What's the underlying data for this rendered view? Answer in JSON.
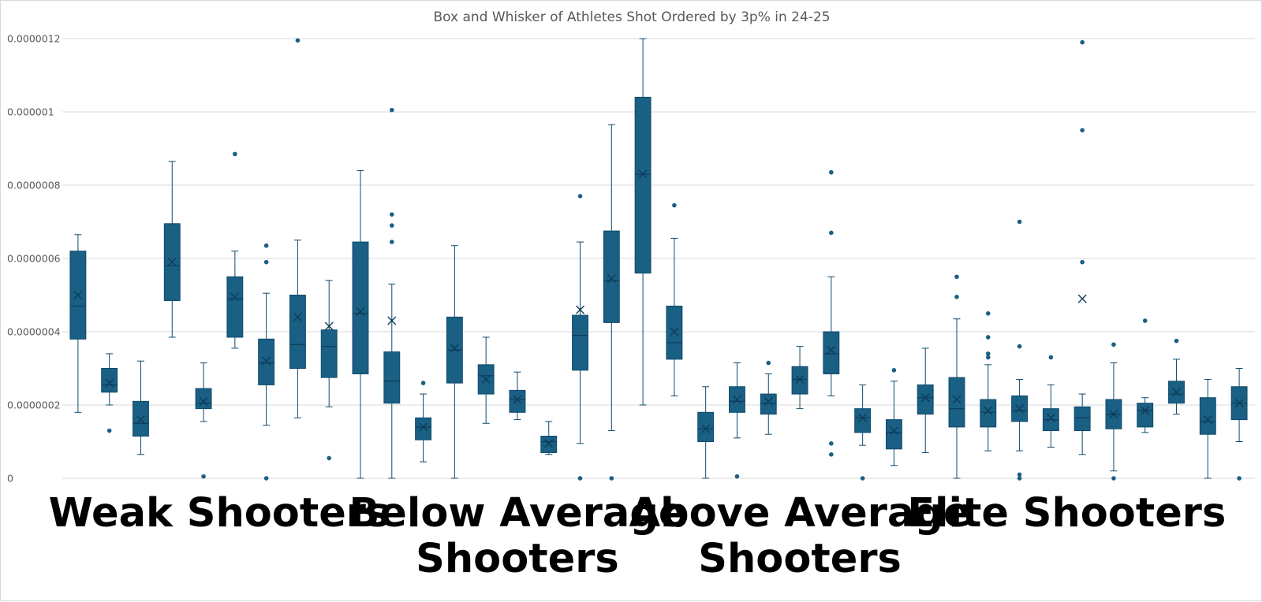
{
  "chart_data": {
    "type": "box",
    "title": "Box and Whisker of Athletes Shot Ordered by 3p% in 24-25",
    "xlabel": "",
    "ylabel": "",
    "ylim": [
      0,
      1.2e-06
    ],
    "yticks": [
      "0",
      "0.0000002",
      "0.0000004",
      "0.0000006",
      "0.0000008",
      "0.000001",
      "0.0000012"
    ],
    "grid": true,
    "colors": {
      "box": "#1a5f84",
      "box_stroke": "#0f4a6b",
      "median": "#0d3d59",
      "gridline": "#d9d9d9",
      "text": "#595959"
    },
    "groups": [
      {
        "label": [
          "Weak Shooters"
        ],
        "start": 0,
        "end": 9
      },
      {
        "label": [
          "Below Average",
          "Shooters"
        ],
        "start": 10,
        "end": 18
      },
      {
        "label": [
          "Above Average",
          "Shooters"
        ],
        "start": 19,
        "end": 27
      },
      {
        "label": [
          "Elite Shooters"
        ],
        "start": 28,
        "end": 35
      }
    ],
    "boxes": [
      {
        "min": 1.8e-07,
        "q1": 3.8e-07,
        "median": 4.7e-07,
        "q3": 6.2e-07,
        "max": 6.65e-07,
        "mean": 5e-07,
        "outliers": []
      },
      {
        "min": 2e-07,
        "q1": 2.35e-07,
        "median": 2.55e-07,
        "q3": 3e-07,
        "max": 3.4e-07,
        "mean": 2.6e-07,
        "outliers": [
          1.3e-07
        ]
      },
      {
        "min": 6.5e-08,
        "q1": 1.15e-07,
        "median": 1.5e-07,
        "q3": 2.1e-07,
        "max": 3.2e-07,
        "mean": 1.6e-07,
        "outliers": []
      },
      {
        "min": 3.85e-07,
        "q1": 4.85e-07,
        "median": 5.8e-07,
        "q3": 6.95e-07,
        "max": 8.65e-07,
        "mean": 5.9e-07,
        "outliers": []
      },
      {
        "min": 1.55e-07,
        "q1": 1.9e-07,
        "median": 2.05e-07,
        "q3": 2.45e-07,
        "max": 3.15e-07,
        "mean": 2.1e-07,
        "outliers": [
          5e-09
        ]
      },
      {
        "min": 3.55e-07,
        "q1": 3.85e-07,
        "median": 4.9e-07,
        "q3": 5.5e-07,
        "max": 6.2e-07,
        "mean": 4.95e-07,
        "outliers": [
          8.85e-07
        ]
      },
      {
        "min": 1.45e-07,
        "q1": 2.55e-07,
        "median": 3.15e-07,
        "q3": 3.8e-07,
        "max": 5.05e-07,
        "mean": 3.2e-07,
        "outliers": [
          0,
          5.9e-07,
          6.35e-07
        ]
      },
      {
        "min": 1.65e-07,
        "q1": 3e-07,
        "median": 3.65e-07,
        "q3": 5e-07,
        "max": 6.5e-07,
        "mean": 4.4e-07,
        "outliers": [
          1.195e-06
        ]
      },
      {
        "min": 1.95e-07,
        "q1": 2.75e-07,
        "median": 3.6e-07,
        "q3": 4.05e-07,
        "max": 5.4e-07,
        "mean": 4.15e-07,
        "outliers": [
          5.5e-08
        ]
      },
      {
        "min": 0,
        "q1": 2.85e-07,
        "median": 4.5e-07,
        "q3": 6.45e-07,
        "max": 8.4e-07,
        "mean": 4.55e-07,
        "outliers": []
      },
      {
        "min": 0,
        "q1": 2.05e-07,
        "median": 2.65e-07,
        "q3": 3.45e-07,
        "max": 5.3e-07,
        "mean": 4.3e-07,
        "outliers": [
          6.45e-07,
          6.9e-07,
          7.2e-07,
          1.005e-06
        ]
      },
      {
        "min": 4.5e-08,
        "q1": 1.05e-07,
        "median": 1.4e-07,
        "q3": 1.65e-07,
        "max": 2.3e-07,
        "mean": 1.4e-07,
        "outliers": [
          2.6e-07
        ]
      },
      {
        "min": 0,
        "q1": 2.6e-07,
        "median": 3.5e-07,
        "q3": 4.4e-07,
        "max": 6.35e-07,
        "mean": 3.55e-07,
        "outliers": []
      },
      {
        "min": 1.5e-07,
        "q1": 2.3e-07,
        "median": 2.8e-07,
        "q3": 3.1e-07,
        "max": 3.85e-07,
        "mean": 2.7e-07,
        "outliers": []
      },
      {
        "min": 1.6e-07,
        "q1": 1.8e-07,
        "median": 2.15e-07,
        "q3": 2.4e-07,
        "max": 2.9e-07,
        "mean": 2.15e-07,
        "outliers": []
      },
      {
        "min": 6.5e-08,
        "q1": 7e-08,
        "median": 1e-07,
        "q3": 1.15e-07,
        "max": 1.55e-07,
        "mean": 9.5e-08,
        "outliers": []
      },
      {
        "min": 9.5e-08,
        "q1": 2.95e-07,
        "median": 3.9e-07,
        "q3": 4.45e-07,
        "max": 6.45e-07,
        "mean": 4.6e-07,
        "outliers": [
          0,
          7.7e-07
        ]
      },
      {
        "min": 1.3e-07,
        "q1": 4.25e-07,
        "median": 5.4e-07,
        "q3": 6.75e-07,
        "max": 9.65e-07,
        "mean": 5.45e-07,
        "outliers": [
          0
        ]
      },
      {
        "min": 2e-07,
        "q1": 5.6e-07,
        "median": 8.3e-07,
        "q3": 1.04e-06,
        "max": 1.2e-06,
        "mean": 8.3e-07,
        "outliers": []
      },
      {
        "min": 2.25e-07,
        "q1": 3.25e-07,
        "median": 3.7e-07,
        "q3": 4.7e-07,
        "max": 6.55e-07,
        "mean": 4e-07,
        "outliers": [
          7.45e-07
        ]
      },
      {
        "min": 0,
        "q1": 1e-07,
        "median": 1.35e-07,
        "q3": 1.8e-07,
        "max": 2.5e-07,
        "mean": 1.35e-07,
        "outliers": []
      },
      {
        "min": 1.1e-07,
        "q1": 1.8e-07,
        "median": 2.1e-07,
        "q3": 2.5e-07,
        "max": 3.15e-07,
        "mean": 2.15e-07,
        "outliers": [
          5e-09
        ]
      },
      {
        "min": 1.2e-07,
        "q1": 1.75e-07,
        "median": 2.05e-07,
        "q3": 2.3e-07,
        "max": 2.85e-07,
        "mean": 2.1e-07,
        "outliers": [
          3.15e-07
        ]
      },
      {
        "min": 1.9e-07,
        "q1": 2.3e-07,
        "median": 2.7e-07,
        "q3": 3.05e-07,
        "max": 3.6e-07,
        "mean": 2.7e-07,
        "outliers": []
      },
      {
        "min": 2.25e-07,
        "q1": 2.85e-07,
        "median": 3.4e-07,
        "q3": 4e-07,
        "max": 5.5e-07,
        "mean": 3.5e-07,
        "outliers": [
          6.5e-08,
          9.5e-08,
          6.7e-07,
          8.35e-07
        ]
      },
      {
        "min": 9e-08,
        "q1": 1.25e-07,
        "median": 1.65e-07,
        "q3": 1.9e-07,
        "max": 2.55e-07,
        "mean": 1.65e-07,
        "outliers": [
          0
        ]
      },
      {
        "min": 3.5e-08,
        "q1": 8e-08,
        "median": 1.25e-07,
        "q3": 1.6e-07,
        "max": 2.65e-07,
        "mean": 1.3e-07,
        "outliers": [
          2.95e-07
        ]
      },
      {
        "min": 7e-08,
        "q1": 1.75e-07,
        "median": 2.2e-07,
        "q3": 2.55e-07,
        "max": 3.55e-07,
        "mean": 2.2e-07,
        "outliers": []
      },
      {
        "min": 0,
        "q1": 1.4e-07,
        "median": 1.9e-07,
        "q3": 2.75e-07,
        "max": 4.35e-07,
        "mean": 2.15e-07,
        "outliers": [
          4.95e-07,
          5.5e-07
        ]
      },
      {
        "min": 7.5e-08,
        "q1": 1.4e-07,
        "median": 1.8e-07,
        "q3": 2.15e-07,
        "max": 3.1e-07,
        "mean": 1.85e-07,
        "outliers": [
          3.3e-07,
          3.4e-07,
          3.85e-07,
          4.5e-07
        ]
      },
      {
        "min": 7.5e-08,
        "q1": 1.55e-07,
        "median": 1.85e-07,
        "q3": 2.25e-07,
        "max": 2.7e-07,
        "mean": 1.9e-07,
        "outliers": [
          0,
          1e-08,
          3.6e-07,
          7e-07
        ]
      },
      {
        "min": 8.5e-08,
        "q1": 1.3e-07,
        "median": 1.6e-07,
        "q3": 1.9e-07,
        "max": 2.55e-07,
        "mean": 1.65e-07,
        "outliers": [
          3.3e-07
        ]
      },
      {
        "min": 6.5e-08,
        "q1": 1.3e-07,
        "median": 1.65e-07,
        "q3": 1.95e-07,
        "max": 2.3e-07,
        "mean": 4.9e-07,
        "outliers": [
          5.9e-07,
          9.5e-07,
          1.19e-06
        ]
      },
      {
        "min": 2e-08,
        "q1": 1.35e-07,
        "median": 1.75e-07,
        "q3": 2.15e-07,
        "max": 3.15e-07,
        "mean": 1.75e-07,
        "outliers": [
          0,
          3.65e-07
        ]
      },
      {
        "min": 1.25e-07,
        "q1": 1.4e-07,
        "median": 1.85e-07,
        "q3": 2.05e-07,
        "max": 2.2e-07,
        "mean": 1.85e-07,
        "outliers": [
          4.3e-07
        ]
      },
      {
        "min": 1.75e-07,
        "q1": 2.05e-07,
        "median": 2.3e-07,
        "q3": 2.65e-07,
        "max": 3.25e-07,
        "mean": 2.35e-07,
        "outliers": [
          3.75e-07
        ]
      },
      {
        "min": 0,
        "q1": 1.2e-07,
        "median": 1.55e-07,
        "q3": 2.2e-07,
        "max": 2.7e-07,
        "mean": 1.6e-07,
        "outliers": []
      },
      {
        "min": 1e-07,
        "q1": 1.6e-07,
        "median": 2.05e-07,
        "q3": 2.5e-07,
        "max": 3e-07,
        "mean": 2.05e-07,
        "outliers": [
          0
        ]
      }
    ]
  }
}
